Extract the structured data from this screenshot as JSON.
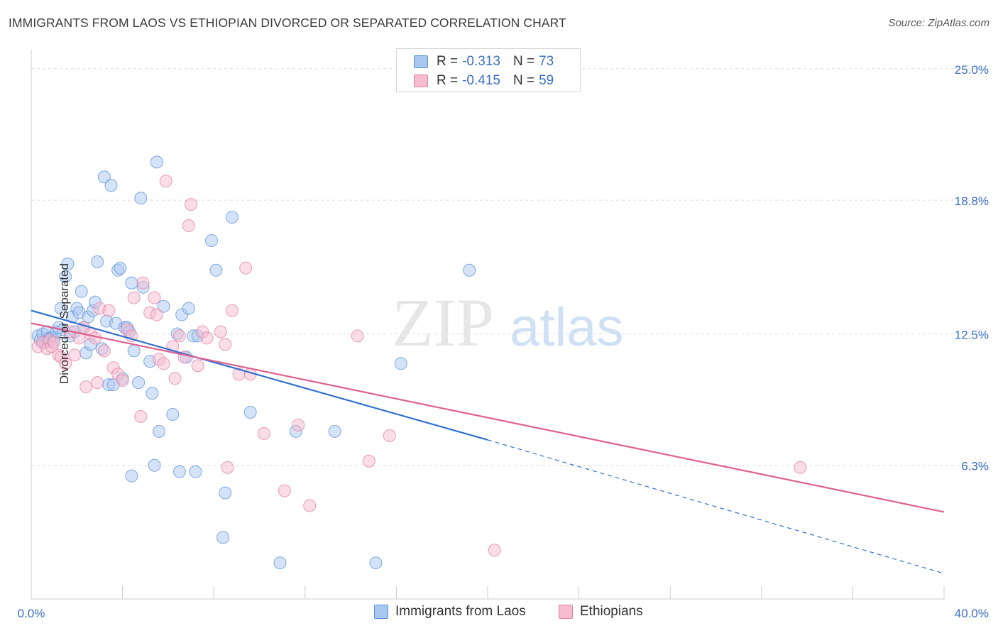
{
  "title": "IMMIGRANTS FROM LAOS VS ETHIOPIAN DIVORCED OR SEPARATED CORRELATION CHART",
  "source": "Source: ZipAtlas.com",
  "watermark": {
    "zip": "ZIP",
    "atlas": "atlas"
  },
  "legend": {
    "r_label": "R =",
    "n_label": "N =",
    "rows": [
      {
        "r": "-0.313",
        "n": "73"
      },
      {
        "r": "-0.415",
        "n": "59"
      }
    ]
  },
  "colors": {
    "blue_fill": "#a9c8f0",
    "blue_stroke": "#5b8fd9",
    "blue_line": "#2f6fd0",
    "pink_fill": "#f6bcd0",
    "pink_stroke": "#e27fa3",
    "pink_line": "#e0608f",
    "tick_text": "#3a6fc4",
    "grid": "#dcdcdc"
  },
  "chart_data": {
    "type": "scatter",
    "title": "IMMIGRANTS FROM LAOS VS ETHIOPIAN DIVORCED OR SEPARATED CORRELATION CHART",
    "xlabel": "",
    "ylabel": "Divorced or Separated",
    "xlim": [
      0,
      40
    ],
    "ylim": [
      0,
      25.9
    ],
    "x_tick_labels": [
      "0.0%",
      "40.0%"
    ],
    "y_ticks": [
      6.3,
      12.5,
      18.8,
      25.0
    ],
    "y_tick_labels": [
      "6.3%",
      "12.5%",
      "18.8%",
      "25.0%"
    ],
    "grid": "horizontal dashed",
    "legend_placement": "top-center and bottom",
    "series": [
      {
        "name": "Immigrants from Laos",
        "color": "#a9c8f0",
        "trend": {
          "x": [
            0,
            20
          ],
          "y": [
            13.6,
            7.5
          ],
          "dashed_to": [
            40,
            1.2
          ]
        },
        "points": [
          [
            0.3,
            12.4
          ],
          [
            0.4,
            12.2
          ],
          [
            0.5,
            12.5
          ],
          [
            0.6,
            12.1
          ],
          [
            0.7,
            12.6
          ],
          [
            0.8,
            12.3
          ],
          [
            0.9,
            12.3
          ],
          [
            1.0,
            12.2
          ],
          [
            1.1,
            12.6
          ],
          [
            1.2,
            12.8
          ],
          [
            1.3,
            13.7
          ],
          [
            1.4,
            12.7
          ],
          [
            1.5,
            15.2
          ],
          [
            1.6,
            15.8
          ],
          [
            1.7,
            12.4
          ],
          [
            1.8,
            13.3
          ],
          [
            1.9,
            12.6
          ],
          [
            2.0,
            13.7
          ],
          [
            2.1,
            13.5
          ],
          [
            2.2,
            14.5
          ],
          [
            2.3,
            12.8
          ],
          [
            2.4,
            11.6
          ],
          [
            2.5,
            13.3
          ],
          [
            2.6,
            12.0
          ],
          [
            2.7,
            13.6
          ],
          [
            2.8,
            14.0
          ],
          [
            2.9,
            15.9
          ],
          [
            3.1,
            11.8
          ],
          [
            3.2,
            19.9
          ],
          [
            3.3,
            13.1
          ],
          [
            3.4,
            10.1
          ],
          [
            3.5,
            19.5
          ],
          [
            3.6,
            10.1
          ],
          [
            3.7,
            13.0
          ],
          [
            3.8,
            15.5
          ],
          [
            3.9,
            15.6
          ],
          [
            4.0,
            10.4
          ],
          [
            4.1,
            12.8
          ],
          [
            4.2,
            12.8
          ],
          [
            4.3,
            12.6
          ],
          [
            4.4,
            14.9
          ],
          [
            4.5,
            11.7
          ],
          [
            4.7,
            10.2
          ],
          [
            4.8,
            18.9
          ],
          [
            4.9,
            14.7
          ],
          [
            5.2,
            11.2
          ],
          [
            5.3,
            9.7
          ],
          [
            5.4,
            6.3
          ],
          [
            5.5,
            20.6
          ],
          [
            5.6,
            7.9
          ],
          [
            5.8,
            13.8
          ],
          [
            6.2,
            8.7
          ],
          [
            6.4,
            12.5
          ],
          [
            6.5,
            6.0
          ],
          [
            6.6,
            13.4
          ],
          [
            6.8,
            11.4
          ],
          [
            6.9,
            13.7
          ],
          [
            7.1,
            12.4
          ],
          [
            7.2,
            6.0
          ],
          [
            7.3,
            12.4
          ],
          [
            7.9,
            16.9
          ],
          [
            8.1,
            15.5
          ],
          [
            8.4,
            2.9
          ],
          [
            8.5,
            5.0
          ],
          [
            8.8,
            18.0
          ],
          [
            9.6,
            8.8
          ],
          [
            10.9,
            1.7
          ],
          [
            11.6,
            7.9
          ],
          [
            13.3,
            7.9
          ],
          [
            15.1,
            1.7
          ],
          [
            16.2,
            11.1
          ],
          [
            19.2,
            15.5
          ],
          [
            4.4,
            5.8
          ]
        ]
      },
      {
        "name": "Ethiopians",
        "color": "#f6bcd0",
        "trend": {
          "x": [
            0,
            40
          ],
          "y": [
            13.0,
            4.1
          ]
        },
        "points": [
          [
            0.3,
            11.9
          ],
          [
            0.5,
            12.1
          ],
          [
            0.7,
            11.8
          ],
          [
            0.8,
            12.2
          ],
          [
            0.9,
            11.9
          ],
          [
            1.0,
            12.1
          ],
          [
            1.2,
            11.5
          ],
          [
            1.3,
            11.4
          ],
          [
            1.5,
            11.1
          ],
          [
            1.7,
            12.6
          ],
          [
            1.9,
            11.5
          ],
          [
            2.1,
            12.3
          ],
          [
            2.3,
            12.8
          ],
          [
            2.4,
            10.0
          ],
          [
            2.6,
            12.5
          ],
          [
            2.8,
            12.3
          ],
          [
            2.9,
            10.2
          ],
          [
            3.0,
            13.7
          ],
          [
            3.2,
            11.7
          ],
          [
            3.4,
            13.6
          ],
          [
            3.6,
            10.9
          ],
          [
            3.8,
            10.6
          ],
          [
            4.0,
            10.3
          ],
          [
            4.2,
            12.7
          ],
          [
            4.4,
            12.4
          ],
          [
            4.5,
            14.2
          ],
          [
            4.8,
            8.6
          ],
          [
            4.9,
            14.9
          ],
          [
            5.2,
            13.5
          ],
          [
            5.4,
            14.2
          ],
          [
            5.5,
            13.4
          ],
          [
            5.6,
            11.3
          ],
          [
            5.8,
            11.1
          ],
          [
            5.9,
            19.7
          ],
          [
            6.2,
            11.9
          ],
          [
            6.3,
            10.4
          ],
          [
            6.5,
            12.4
          ],
          [
            6.7,
            11.4
          ],
          [
            6.9,
            17.6
          ],
          [
            7.0,
            18.6
          ],
          [
            7.3,
            11.0
          ],
          [
            7.5,
            12.6
          ],
          [
            7.7,
            12.3
          ],
          [
            8.3,
            12.6
          ],
          [
            8.5,
            12.0
          ],
          [
            8.8,
            13.6
          ],
          [
            9.1,
            10.6
          ],
          [
            9.4,
            15.6
          ],
          [
            9.6,
            10.6
          ],
          [
            10.2,
            7.8
          ],
          [
            11.1,
            5.1
          ],
          [
            11.7,
            8.2
          ],
          [
            12.2,
            4.4
          ],
          [
            14.3,
            12.4
          ],
          [
            14.8,
            6.5
          ],
          [
            15.7,
            7.7
          ],
          [
            20.3,
            2.3
          ],
          [
            33.7,
            6.2
          ],
          [
            8.6,
            6.2
          ]
        ]
      }
    ]
  },
  "bottom_legend": [
    "Immigrants from Laos",
    "Ethiopians"
  ]
}
